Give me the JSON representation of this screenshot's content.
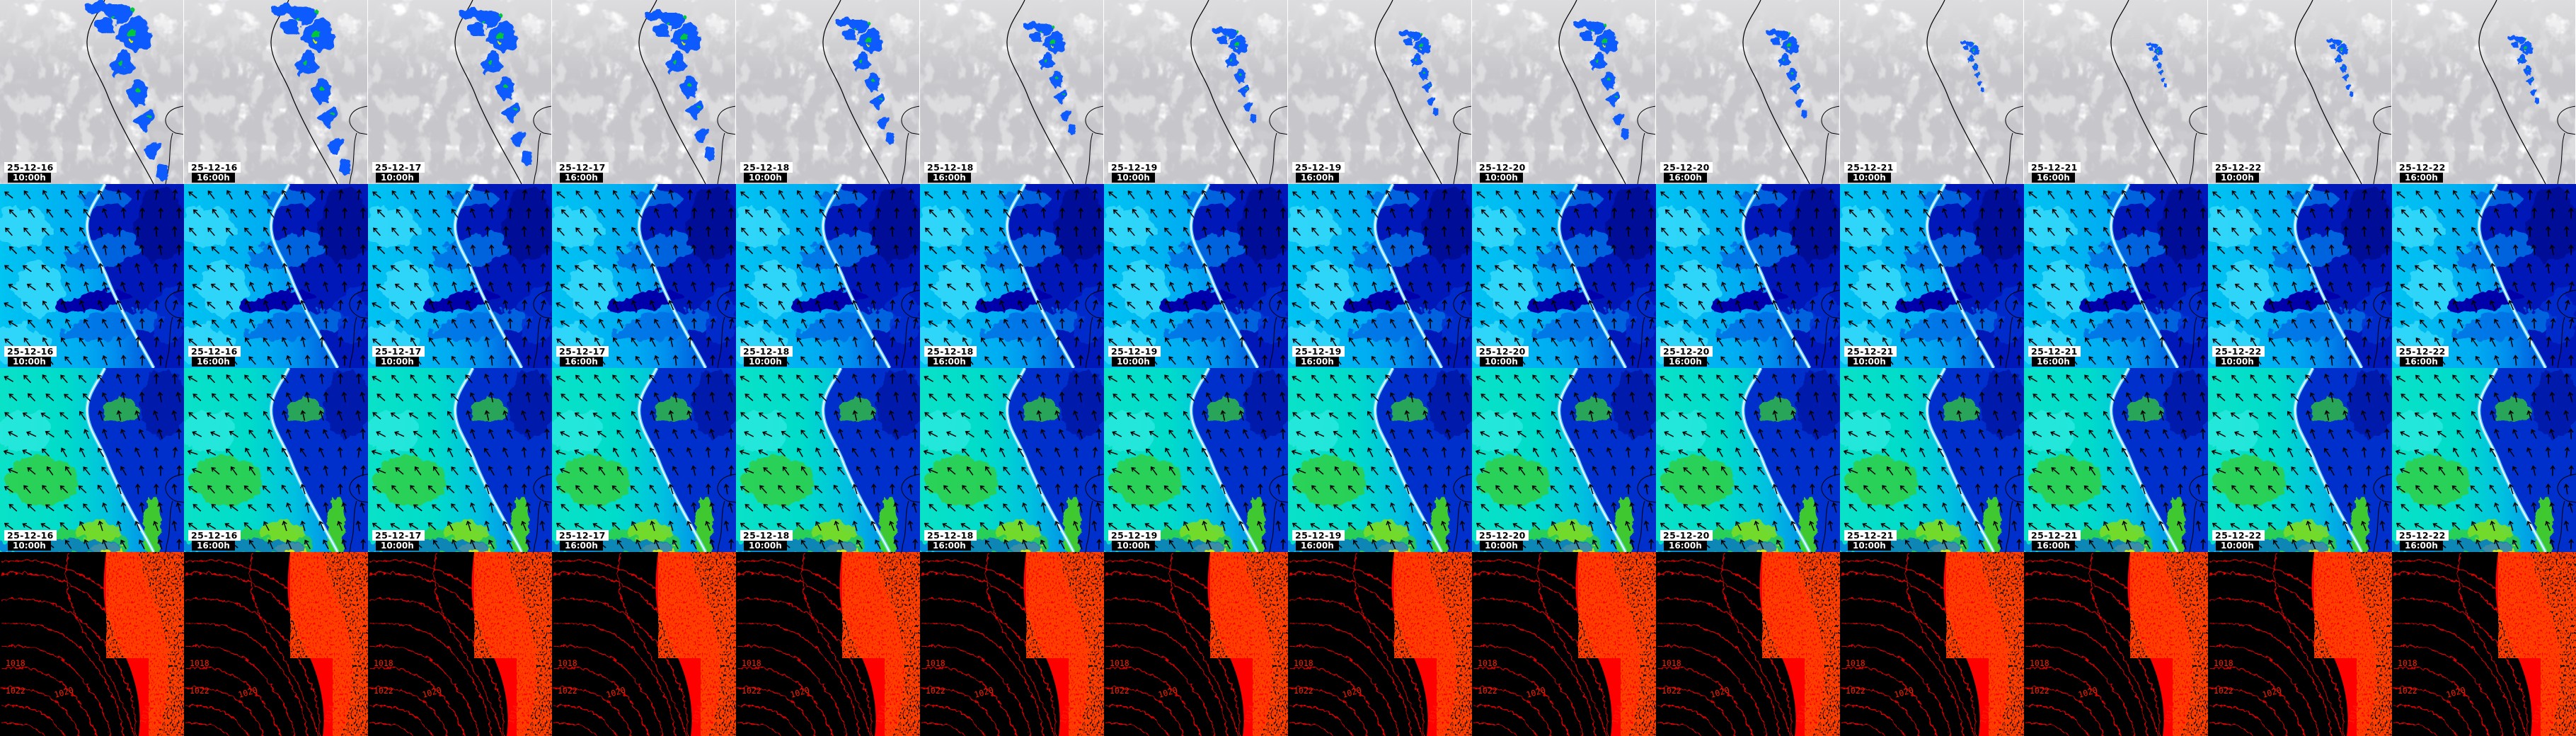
{
  "grid": {
    "columns": [
      {
        "date": "25-12-16",
        "time": "10:00h"
      },
      {
        "date": "25-12-16",
        "time": "16:00h"
      },
      {
        "date": "25-12-17",
        "time": "10:00h"
      },
      {
        "date": "25-12-17",
        "time": "16:00h"
      },
      {
        "date": "25-12-18",
        "time": "10:00h"
      },
      {
        "date": "25-12-18",
        "time": "16:00h"
      },
      {
        "date": "25-12-19",
        "time": "10:00h"
      },
      {
        "date": "25-12-19",
        "time": "16:00h"
      },
      {
        "date": "25-12-20",
        "time": "10:00h"
      },
      {
        "date": "25-12-20",
        "time": "16:00h"
      },
      {
        "date": "25-12-21",
        "time": "10:00h"
      },
      {
        "date": "25-12-21",
        "time": "16:00h"
      },
      {
        "date": "25-12-22",
        "time": "10:00h"
      },
      {
        "date": "25-12-22",
        "time": "16:00h"
      }
    ],
    "rows": [
      {
        "id": "satellite",
        "kind": "satellite-cloud-precipitation-map",
        "has_labels": true
      },
      {
        "id": "wind-upper",
        "kind": "wind-vector-field-map",
        "has_labels": true
      },
      {
        "id": "wind-lower",
        "kind": "wind-vector-field-map",
        "has_labels": true
      },
      {
        "id": "isobars",
        "kind": "surface-pressure-isobar-map",
        "has_labels": false
      }
    ]
  },
  "isobars": {
    "labels": [
      "1020",
      "1018",
      "1014",
      "1022"
    ]
  },
  "colors": {
    "precip_blue": "#0f5aff",
    "precip_green": "#00c838",
    "cloud_gray": "#b8b8b8",
    "wind_cyan": "#00c4f2",
    "wind_mid_blue": "#0084ee",
    "wind_dark_blue": "#0014b4",
    "wind_turquoise": "#00e2c8",
    "wind_green": "#35cc30",
    "wind_yellow": "#cce81e",
    "isobar_red": "#ff1e00",
    "isobar_bg": "#000000",
    "label_date_bg": "#ffffff",
    "label_date_fg": "#000000",
    "label_time_bg": "#000000",
    "label_time_fg": "#ffffff"
  }
}
